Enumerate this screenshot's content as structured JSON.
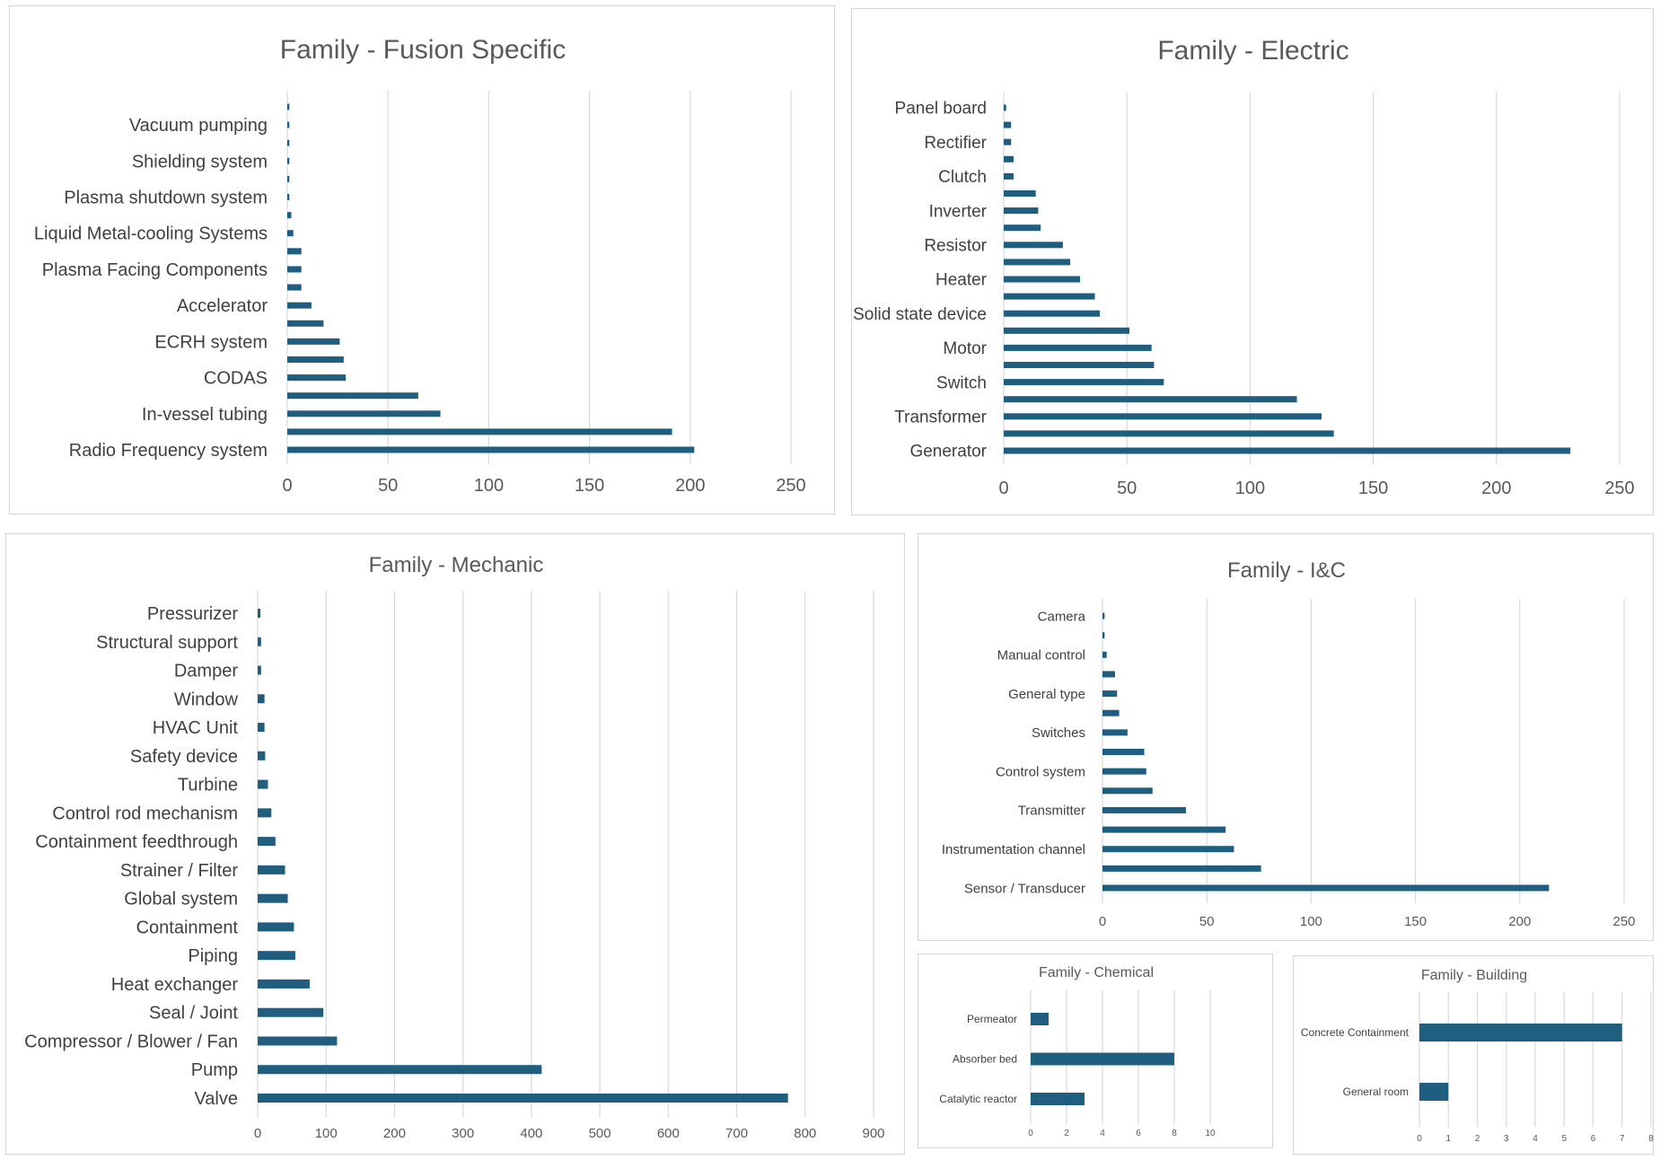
{
  "chart_data": [
    {
      "id": "fusion",
      "type": "bar",
      "orientation": "horizontal",
      "title": "Family - Fusion Specific",
      "xlim": [
        0,
        250
      ],
      "xticks": [
        0,
        50,
        100,
        150,
        200,
        250
      ],
      "grid": true,
      "categories": [
        "",
        "Vacuum pumping",
        "",
        "Shielding system",
        "",
        "Plasma shutdown system",
        "",
        "Liquid Metal-cooling Systems",
        "",
        "Plasma Facing Components",
        "",
        "Accelerator",
        "",
        "ECRH system",
        "",
        "CODAS",
        "",
        "In-vessel tubing",
        "",
        "Radio Frequency system"
      ],
      "values": [
        1,
        1,
        1,
        1,
        1,
        1,
        2,
        3,
        7,
        7,
        7,
        12,
        18,
        26,
        28,
        29,
        65,
        76,
        191,
        202
      ]
    },
    {
      "id": "electric",
      "type": "bar",
      "orientation": "horizontal",
      "title": "Family - Electric",
      "xlim": [
        0,
        250
      ],
      "xticks": [
        0,
        50,
        100,
        150,
        200,
        250
      ],
      "grid": true,
      "categories": [
        "Panel board",
        "",
        "Rectifier",
        "",
        "Clutch",
        "",
        "Inverter",
        "",
        "Resistor",
        "",
        "Heater",
        "",
        "Solid state device",
        "",
        "Motor",
        "",
        "Switch",
        "",
        "Transformer",
        "",
        "Generator"
      ],
      "values": [
        1,
        3,
        3,
        4,
        4,
        13,
        14,
        15,
        24,
        27,
        31,
        37,
        39,
        51,
        60,
        61,
        65,
        119,
        129,
        134,
        230
      ]
    },
    {
      "id": "mechanic",
      "type": "bar",
      "orientation": "horizontal",
      "title": "Family - Mechanic",
      "xlim": [
        0,
        900
      ],
      "xticks": [
        0,
        100,
        200,
        300,
        400,
        500,
        600,
        700,
        800,
        900
      ],
      "grid": true,
      "categories": [
        "Pressurizer",
        "Structural support",
        "Damper",
        "Window",
        "HVAC Unit",
        "Safety device",
        "Turbine",
        "Control rod mechanism",
        "Containment feedthrough",
        "Strainer / Filter",
        "Global system",
        "Containment",
        "Piping",
        "Heat exchanger",
        "Seal / Joint",
        "Compressor / Blower / Fan",
        "Pump",
        "Valve"
      ],
      "values": [
        4,
        5,
        5,
        10,
        10,
        11,
        15,
        20,
        26,
        40,
        44,
        53,
        55,
        76,
        96,
        116,
        415,
        775
      ]
    },
    {
      "id": "ic",
      "type": "bar",
      "orientation": "horizontal",
      "title": "Family - I&C",
      "xlim": [
        0,
        250
      ],
      "xticks": [
        0,
        50,
        100,
        150,
        200,
        250
      ],
      "grid": true,
      "categories": [
        "Camera",
        "",
        "Manual control",
        "",
        "General type",
        "",
        "Switches",
        "",
        "Control system",
        "",
        "Transmitter",
        "",
        "Instrumentation channel",
        "",
        "Sensor / Transducer"
      ],
      "values": [
        1,
        1,
        2,
        6,
        7,
        8,
        12,
        20,
        21,
        24,
        40,
        59,
        63,
        76,
        214
      ]
    },
    {
      "id": "chemical",
      "type": "bar",
      "orientation": "horizontal",
      "title": "Family - Chemical",
      "xlim": [
        0,
        10
      ],
      "xticks": [
        0,
        2,
        4,
        6,
        8,
        10
      ],
      "grid": true,
      "categories": [
        "Permeator",
        "Absorber bed",
        "Catalytic reactor"
      ],
      "values": [
        1,
        8,
        3
      ]
    },
    {
      "id": "building",
      "type": "bar",
      "orientation": "horizontal",
      "title": "Family - Building",
      "xlim": [
        0,
        8
      ],
      "xticks": [
        0,
        1,
        2,
        3,
        4,
        5,
        6,
        7,
        8
      ],
      "grid": true,
      "categories": [
        "Concrete Containment",
        "General room"
      ],
      "values": [
        7,
        1
      ]
    }
  ],
  "colors": {
    "bar": "#1f5e7e",
    "grid": "#d9d9d9",
    "border": "#d4d4d4",
    "title": "#595959",
    "label": "#404040"
  }
}
